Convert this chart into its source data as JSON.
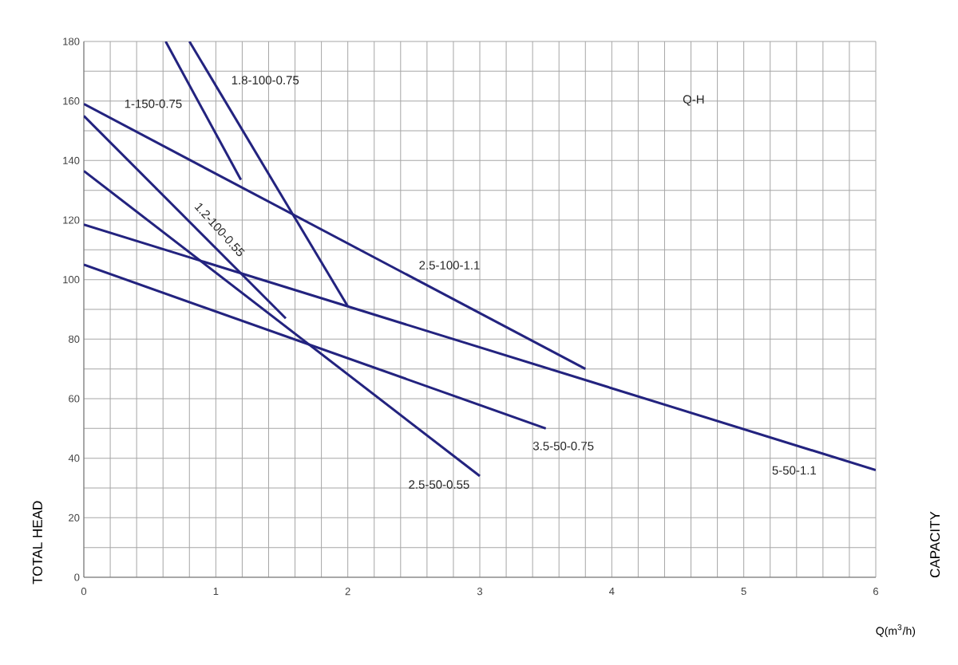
{
  "chart_data": {
    "type": "line",
    "xlabel": "Q(m$^{3}$/h)",
    "ylabel": "TOTAL HEAD",
    "y2label": "CAPACITY",
    "xlim": [
      0,
      6
    ],
    "ylim": [
      0,
      180
    ],
    "xticks": [
      0,
      1,
      2,
      3,
      4,
      5,
      6
    ],
    "yticks": [
      0,
      20,
      40,
      60,
      80,
      100,
      120,
      140,
      160,
      180
    ],
    "grid": true,
    "marker": "none",
    "line_style": "solid",
    "series": [
      {
        "name": "1-150-0.75",
        "color": "#23237f",
        "x": [
          0.62,
          1.19
        ],
        "values": [
          180,
          133.5
        ]
      },
      {
        "name": "1.8-100-0.75",
        "color": "#23237f",
        "x": [
          0.8,
          2.0
        ],
        "values": [
          180,
          91
        ]
      },
      {
        "name": "2.5-100-1.1",
        "color": "#23237f",
        "x": [
          0,
          3.8
        ],
        "values": [
          159,
          70
        ]
      },
      {
        "name": "1.2-100-0.55",
        "color": "#23237f",
        "x": [
          0,
          1.53
        ],
        "values": [
          155,
          87
        ]
      },
      {
        "name": "2.5-50-0.55",
        "color": "#23237f",
        "x": [
          0,
          3.0
        ],
        "values": [
          136.5,
          34
        ]
      },
      {
        "name": "5-50-1.1",
        "color": "#23237f",
        "x": [
          0,
          2.0,
          6
        ],
        "values": [
          118.5,
          91,
          36
        ]
      },
      {
        "name": "3.5-50-0.75",
        "color": "#23237f",
        "x": [
          0,
          3.5
        ],
        "values": [
          105,
          50
        ]
      }
    ],
    "annotations": [
      "Q-H"
    ]
  }
}
